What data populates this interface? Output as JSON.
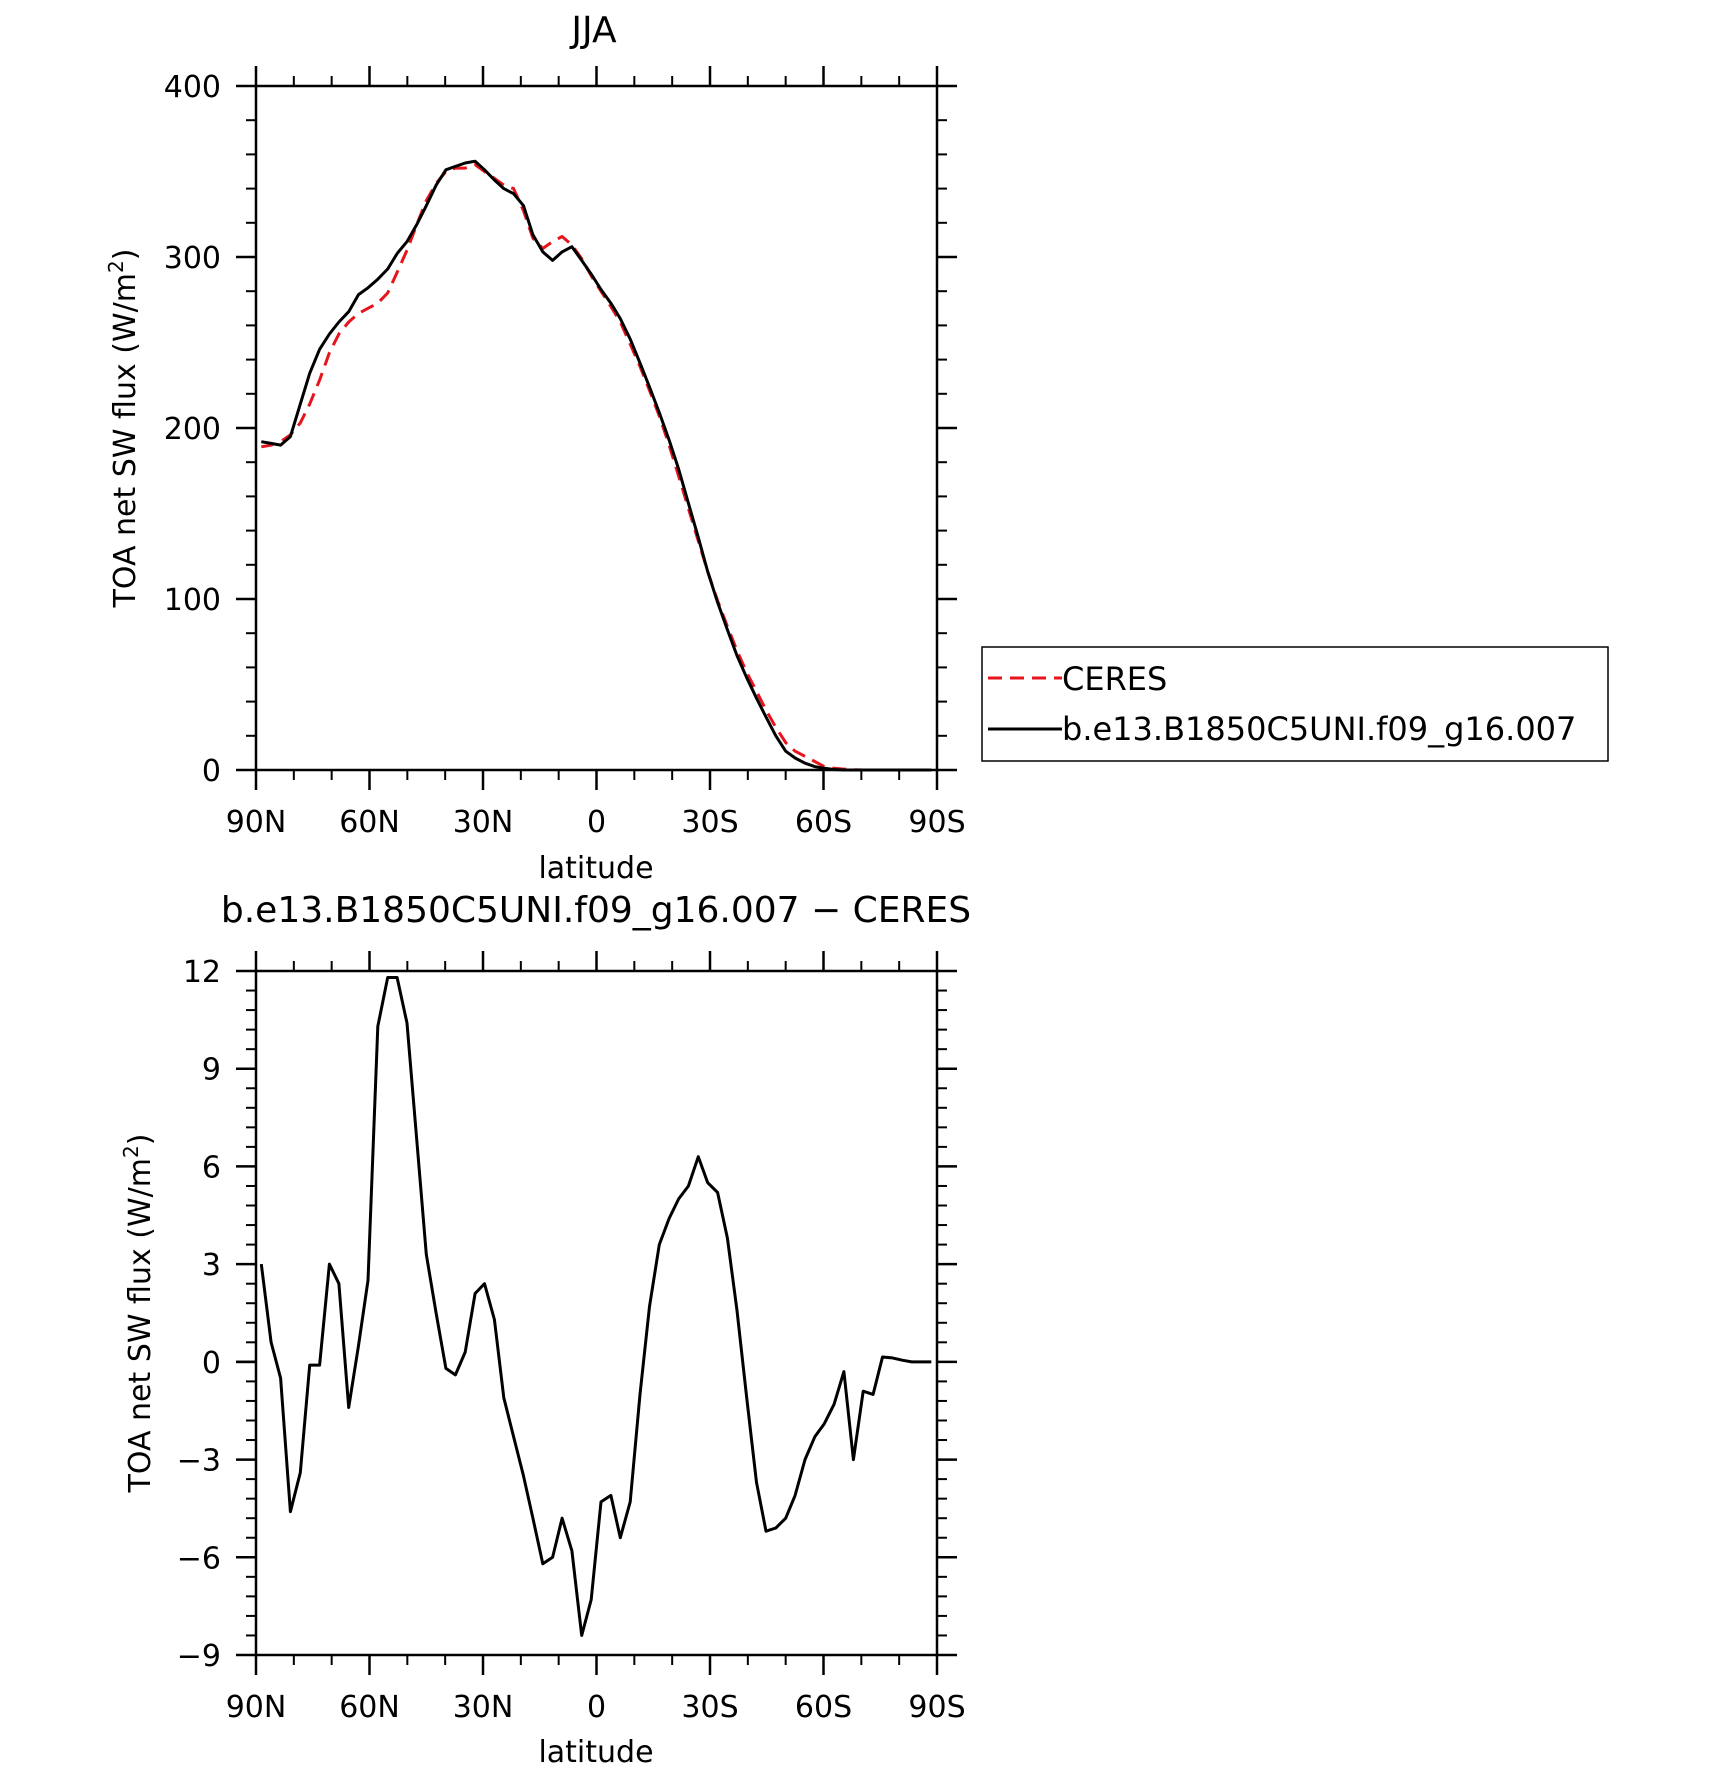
{
  "chart_data": [
    {
      "type": "line",
      "title": "JJA",
      "xlabel": "latitude",
      "ylabel": "TOA net SW flux (W/m²)",
      "ylabel_main": "TOA net SW flux (W/m",
      "ylabel_sup": "2",
      "ylabel_close": ")",
      "xlim": [
        90,
        -90
      ],
      "ylim": [
        0,
        400
      ],
      "xticks": [
        90,
        60,
        30,
        0,
        -30,
        -60,
        -90
      ],
      "xtick_labels": [
        "90N",
        "60N",
        "30N",
        "0",
        "30S",
        "60S",
        "90S"
      ],
      "yticks": [
        0,
        100,
        200,
        300,
        400
      ],
      "ytick_labels": [
        "0",
        "100",
        "200",
        "300",
        "400"
      ],
      "legend_position": "right",
      "series": [
        {
          "name": "CERES",
          "color": "#e8141c",
          "dash": "dashed",
          "x": [
            88.6,
            86,
            83.5,
            80.9,
            78.3,
            75.8,
            73.2,
            70.6,
            68.1,
            65.5,
            62.9,
            60.4,
            57.8,
            55.2,
            52.7,
            50.1,
            47.5,
            45,
            42.4,
            39.8,
            37.3,
            34.7,
            32.1,
            29.6,
            27,
            24.5,
            21.9,
            19.3,
            16.8,
            14.2,
            11.6,
            9.1,
            6.5,
            3.9,
            1.4,
            -1.2,
            -3.8,
            -6.3,
            -8.9,
            -11.5,
            -14,
            -16.6,
            -19.2,
            -21.7,
            -24.3,
            -26.9,
            -29.4,
            -32,
            -34.6,
            -37.1,
            -39.7,
            -42.3,
            -44.8,
            -47.4,
            -50,
            -52.5,
            -55.1,
            -57.7,
            -60.2,
            -62.8,
            -65.4,
            -67.9,
            -70.5,
            -73.1,
            -75.6,
            -78.2,
            -80.8,
            -83.3,
            -85.9,
            -88.5
          ],
          "values": [
            189,
            190,
            192,
            196,
            203,
            214,
            228,
            244,
            255,
            262,
            267,
            270,
            273,
            279,
            291,
            304,
            319,
            333,
            343,
            350,
            352,
            352,
            354,
            350,
            346,
            342,
            340,
            327,
            311,
            305,
            309,
            312,
            307,
            299,
            289,
            280,
            271,
            262,
            249,
            236,
            222,
            207,
            190,
            172,
            153,
            134,
            116,
            99,
            84,
            70,
            57,
            46,
            35,
            25,
            16,
            11,
            8,
            5,
            2,
            1,
            0.5,
            0.2,
            0,
            0,
            0,
            0,
            0,
            0,
            0,
            0
          ]
        },
        {
          "name": "b.e13.B1850C5UNI.f09_g16.007",
          "color": "#000000",
          "dash": "solid",
          "x": [
            88.6,
            86,
            83.5,
            80.9,
            78.3,
            75.8,
            73.2,
            70.6,
            68.1,
            65.5,
            62.9,
            60.4,
            57.8,
            55.2,
            52.7,
            50.1,
            47.5,
            45,
            42.4,
            39.8,
            37.3,
            34.7,
            32.1,
            29.6,
            27,
            24.5,
            21.9,
            19.3,
            16.8,
            14.2,
            11.6,
            9.1,
            6.5,
            3.9,
            1.4,
            -1.2,
            -3.8,
            -6.3,
            -8.9,
            -11.5,
            -14,
            -16.6,
            -19.2,
            -21.7,
            -24.3,
            -26.9,
            -29.4,
            -32,
            -34.6,
            -37.1,
            -39.7,
            -42.3,
            -44.8,
            -47.4,
            -50,
            -52.5,
            -55.1,
            -57.7,
            -60.2,
            -62.8,
            -65.4,
            -67.9,
            -70.5,
            -73.1,
            -75.6,
            -78.2,
            -80.8,
            -83.3,
            -85.9,
            -88.5
          ],
          "values": [
            192,
            191,
            190,
            195,
            214,
            232,
            246,
            255,
            262,
            268,
            278,
            282,
            287,
            293,
            302,
            309,
            319,
            330,
            342,
            351,
            353,
            355,
            356,
            351,
            345,
            340,
            337,
            330,
            313,
            303,
            298,
            303,
            306,
            298,
            290,
            281,
            273,
            264,
            252,
            238,
            224,
            209,
            193,
            176,
            156,
            136,
            116,
            98,
            82,
            67,
            54,
            42,
            31,
            20,
            11,
            7,
            4,
            2,
            1,
            0.3,
            0,
            0,
            0,
            0,
            0,
            0,
            0,
            0,
            0,
            0
          ]
        }
      ]
    },
    {
      "type": "line",
      "title": "b.e13.B1850C5UNI.f09_g16.007 − CERES",
      "xlabel": "latitude",
      "ylabel": "TOA net SW flux (W/m²)",
      "ylabel_main": "TOA net SW flux (W/m",
      "ylabel_sup": "2",
      "ylabel_close": ")",
      "xlim": [
        90,
        -90
      ],
      "ylim": [
        -9,
        12
      ],
      "xticks": [
        90,
        60,
        30,
        0,
        -30,
        -60,
        -90
      ],
      "xtick_labels": [
        "90N",
        "60N",
        "30N",
        "0",
        "30S",
        "60S",
        "90S"
      ],
      "yticks": [
        -9,
        -6,
        -3,
        0,
        3,
        6,
        9,
        12
      ],
      "ytick_labels": [
        "−9",
        "−6",
        "−3",
        "0",
        "3",
        "6",
        "9",
        "12"
      ],
      "series": [
        {
          "color": "#000000",
          "dash": "solid",
          "x": [
            88.6,
            86,
            83.5,
            80.9,
            78.3,
            75.8,
            73.2,
            70.6,
            68.1,
            65.5,
            62.9,
            60.4,
            57.8,
            55.2,
            52.7,
            50.1,
            47.5,
            45,
            42.4,
            39.8,
            37.3,
            34.7,
            32.1,
            29.6,
            27,
            24.5,
            21.9,
            19.3,
            16.8,
            14.2,
            11.6,
            9.1,
            6.5,
            3.9,
            1.4,
            -1.2,
            -3.8,
            -6.3,
            -8.9,
            -11.5,
            -14,
            -16.6,
            -19.2,
            -21.7,
            -24.3,
            -26.9,
            -29.4,
            -32,
            -34.6,
            -37.1,
            -39.7,
            -42.3,
            -44.8,
            -47.4,
            -50,
            -52.5,
            -55.1,
            -57.7,
            -60.2,
            -62.8,
            -65.4,
            -67.9,
            -70.5,
            -73.1,
            -75.6,
            -78.2,
            -80.8,
            -83.3,
            -85.9,
            -88.5
          ],
          "values": [
            3,
            0.6,
            -0.5,
            -4.6,
            -3.4,
            -0.1,
            -0.1,
            3,
            2.4,
            -1.4,
            0.5,
            2.5,
            10.3,
            11.8,
            11.8,
            10.4,
            6.8,
            3.3,
            1.5,
            -0.2,
            -0.4,
            0.3,
            2.1,
            2.4,
            1.3,
            -1.1,
            -2.3,
            -3.5,
            -4.8,
            -6.2,
            -6,
            -4.8,
            -5.8,
            -8.4,
            -7.3,
            -4.3,
            -4.1,
            -5.4,
            -4.3,
            -1,
            1.7,
            3.6,
            4.4,
            5,
            5.4,
            6.3,
            5.5,
            5.2,
            3.8,
            1.6,
            -1.1,
            -3.7,
            -5.2,
            -5.1,
            -4.8,
            -4.1,
            -3,
            -2.3,
            -1.9,
            -1.3,
            -0.3,
            -3,
            -0.9,
            -1,
            0.15,
            0.12,
            0.05,
            0,
            0,
            0
          ]
        }
      ]
    }
  ]
}
